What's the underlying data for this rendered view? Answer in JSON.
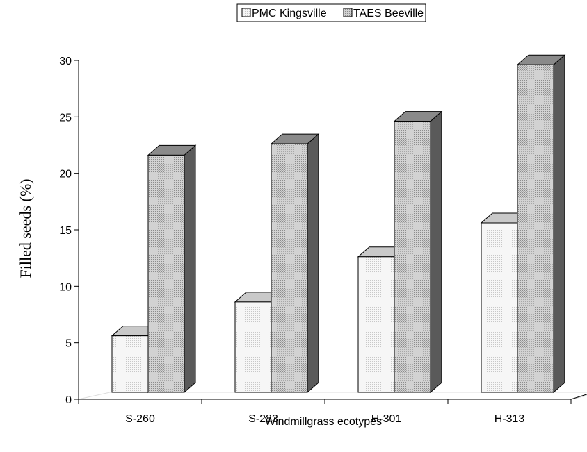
{
  "chart_data": {
    "type": "bar",
    "categories": [
      "S-260",
      "S-283",
      "H-301",
      "H-313"
    ],
    "series": [
      {
        "name": "PMC Kingsville",
        "values": [
          5.0,
          8.0,
          12.0,
          15.0
        ]
      },
      {
        "name": "TAES Beeville",
        "values": [
          21.0,
          22.0,
          24.0,
          29.0
        ]
      }
    ],
    "title": "",
    "xlabel": "Windmillgrass ecotypes",
    "ylabel": "Filled seeds  (%)",
    "ylim": [
      0,
      30
    ],
    "yticks": [
      "0",
      "5",
      "10",
      "15",
      "20",
      "25",
      "30"
    ],
    "legend_position": "top",
    "grid": false,
    "style": "3d-column",
    "colors": {
      "series_front": [
        "#f2f2f2",
        "#c8c8c8"
      ],
      "series_top": [
        "#c9c9c9",
        "#8a8a8a"
      ],
      "series_side": [
        "#9a9a9a",
        "#5a5a5a"
      ]
    }
  }
}
